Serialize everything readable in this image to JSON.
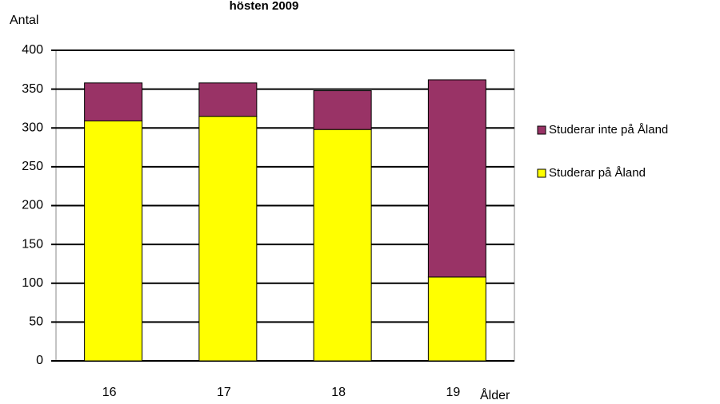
{
  "chart_data": {
    "type": "stacked_bar",
    "title": "hösten 2009",
    "y_label": "Antal",
    "x_label": "Ålder",
    "categories": [
      "16",
      "17",
      "18",
      "19"
    ],
    "series": [
      {
        "name": "Studerar på Åland",
        "color": "#ffff00",
        "values": [
          309,
          315,
          298,
          108
        ]
      },
      {
        "name": "Studerar inte på Åland",
        "color": "#993366",
        "values": [
          49,
          43,
          50,
          254
        ]
      }
    ],
    "ylim": [
      0,
      400
    ],
    "yticks": [
      0,
      50,
      100,
      150,
      200,
      250,
      300,
      350,
      400
    ],
    "grid": true,
    "legend": "right"
  }
}
